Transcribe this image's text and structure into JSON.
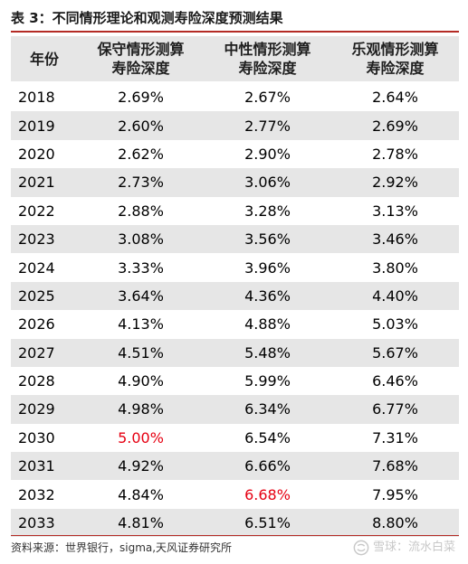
{
  "caption": "表 3：不同情形理论和观测寿险深度预测结果",
  "header": {
    "year": "年份",
    "a_line1": "保守情形测算",
    "a_line2": "寿险深度",
    "b_line1": "中性情形测算",
    "b_line2": "寿险深度",
    "c_line1": "乐观情形测算",
    "c_line2": "寿险深度"
  },
  "rows": [
    {
      "year": "2018",
      "a": "2.69%",
      "b": "2.67%",
      "c": "2.64%"
    },
    {
      "year": "2019",
      "a": "2.60%",
      "b": "2.77%",
      "c": "2.69%"
    },
    {
      "year": "2020",
      "a": "2.62%",
      "b": "2.90%",
      "c": "2.78%"
    },
    {
      "year": "2021",
      "a": "2.73%",
      "b": "3.06%",
      "c": "2.92%"
    },
    {
      "year": "2022",
      "a": "2.88%",
      "b": "3.28%",
      "c": "3.13%"
    },
    {
      "year": "2023",
      "a": "3.08%",
      "b": "3.56%",
      "c": "3.46%"
    },
    {
      "year": "2024",
      "a": "3.33%",
      "b": "3.96%",
      "c": "3.80%"
    },
    {
      "year": "2025",
      "a": "3.64%",
      "b": "4.36%",
      "c": "4.40%"
    },
    {
      "year": "2026",
      "a": "4.13%",
      "b": "4.88%",
      "c": "5.03%"
    },
    {
      "year": "2027",
      "a": "4.51%",
      "b": "5.48%",
      "c": "5.67%"
    },
    {
      "year": "2028",
      "a": "4.90%",
      "b": "5.99%",
      "c": "6.46%"
    },
    {
      "year": "2029",
      "a": "4.98%",
      "b": "6.34%",
      "c": "6.77%"
    },
    {
      "year": "2030",
      "a": "5.00%",
      "b": "6.54%",
      "c": "7.31%"
    },
    {
      "year": "2031",
      "a": "4.92%",
      "b": "6.66%",
      "c": "7.68%"
    },
    {
      "year": "2032",
      "a": "4.84%",
      "b": "6.68%",
      "c": "7.95%"
    },
    {
      "year": "2033",
      "a": "4.81%",
      "b": "6.51%",
      "c": "8.80%"
    }
  ],
  "highlight": {
    "color": "#e60012",
    "cells": [
      {
        "year": "2030",
        "column": "a"
      },
      {
        "year": "2032",
        "column": "b"
      }
    ]
  },
  "source": "资料来源：世界银行，sigma,天风证券研究所",
  "watermark": {
    "icon": "snowball-icon",
    "text": "雪球：流水白菜"
  },
  "colors": {
    "accent_rule": "#b42b25",
    "band": "#e6e6e6"
  }
}
